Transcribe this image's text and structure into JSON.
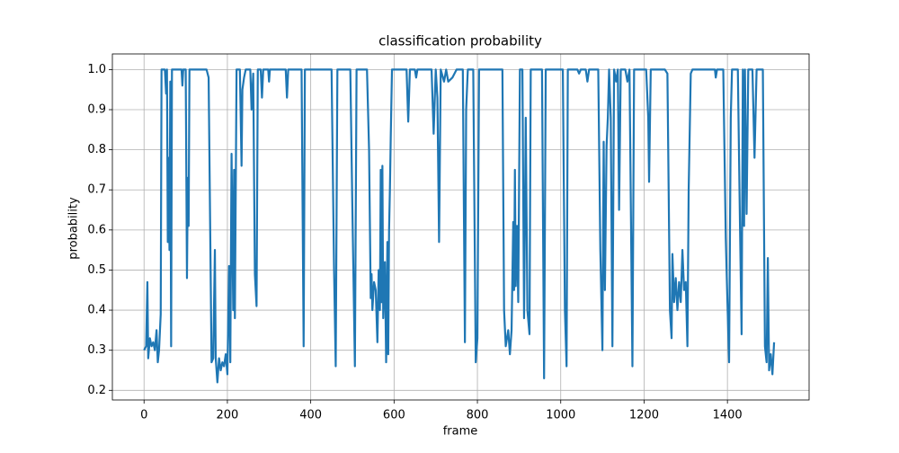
{
  "chart_data": {
    "type": "line",
    "title": "classification probability",
    "xlabel": "frame",
    "ylabel": "probability",
    "x": [
      0,
      5,
      8,
      10,
      14,
      18,
      22,
      26,
      30,
      33,
      36,
      40,
      42,
      50,
      53,
      55,
      57,
      59,
      61,
      63,
      65,
      67,
      90,
      92,
      94,
      100,
      103,
      105,
      107,
      109,
      150,
      155,
      162,
      166,
      170,
      172,
      176,
      180,
      184,
      188,
      192,
      196,
      200,
      204,
      207,
      210,
      214,
      216,
      218,
      222,
      230,
      234,
      236,
      240,
      244,
      255,
      258,
      262,
      266,
      270,
      273,
      280,
      283,
      286,
      298,
      300,
      302,
      340,
      343,
      346,
      378,
      383,
      386,
      450,
      456,
      460,
      464,
      495,
      500,
      506,
      510,
      535,
      540,
      544,
      546,
      548,
      552,
      556,
      560,
      563,
      566,
      568,
      570,
      572,
      574,
      578,
      581,
      584,
      586,
      588,
      590,
      592,
      595,
      630,
      634,
      638,
      650,
      653,
      656,
      690,
      695,
      700,
      704,
      708,
      712,
      720,
      725,
      730,
      740,
      750,
      765,
      770,
      773,
      777,
      790,
      796,
      800,
      804,
      860,
      864,
      868,
      874,
      878,
      882,
      886,
      888,
      890,
      892,
      895,
      898,
      902,
      908,
      912,
      916,
      920,
      925,
      928,
      955,
      960,
      964,
      1005,
      1010,
      1014,
      1017,
      1040,
      1044,
      1048,
      1060,
      1064,
      1068,
      1090,
      1095,
      1100,
      1103,
      1106,
      1110,
      1113,
      1116,
      1120,
      1124,
      1128,
      1133,
      1137,
      1140,
      1144,
      1155,
      1160,
      1165,
      1172,
      1176,
      1205,
      1210,
      1212,
      1216,
      1250,
      1256,
      1262,
      1266,
      1268,
      1272,
      1276,
      1280,
      1284,
      1288,
      1292,
      1296,
      1300,
      1304,
      1307,
      1312,
      1316,
      1370,
      1372,
      1375,
      1390,
      1396,
      1400,
      1404,
      1408,
      1411,
      1425,
      1430,
      1434,
      1437,
      1440,
      1442,
      1446,
      1450,
      1460,
      1465,
      1470,
      1485,
      1490,
      1494,
      1497,
      1500,
      1504,
      1508,
      1512
    ],
    "series": [
      {
        "name": "probability",
        "color": "#1f77b4",
        "values": [
          0.3,
          0.31,
          0.47,
          0.28,
          0.33,
          0.31,
          0.32,
          0.3,
          0.35,
          0.27,
          0.3,
          0.39,
          1.0,
          1.0,
          0.94,
          1.0,
          0.57,
          0.78,
          0.55,
          0.97,
          0.31,
          1.0,
          1.0,
          0.96,
          1.0,
          1.0,
          0.48,
          0.73,
          0.61,
          1.0,
          1.0,
          0.98,
          0.27,
          0.28,
          0.55,
          0.28,
          0.22,
          0.28,
          0.25,
          0.27,
          0.26,
          0.29,
          0.24,
          0.51,
          0.27,
          0.79,
          0.4,
          0.75,
          0.38,
          1.0,
          1.0,
          0.76,
          0.95,
          0.98,
          1.0,
          1.0,
          0.9,
          0.99,
          0.49,
          0.41,
          1.0,
          1.0,
          0.93,
          1.0,
          1.0,
          0.97,
          1.0,
          1.0,
          0.93,
          1.0,
          1.0,
          0.31,
          1.0,
          1.0,
          0.5,
          0.26,
          1.0,
          1.0,
          0.65,
          0.26,
          1.0,
          1.0,
          0.8,
          0.43,
          0.49,
          0.4,
          0.47,
          0.45,
          0.32,
          0.5,
          0.4,
          0.75,
          0.42,
          0.76,
          0.38,
          0.52,
          0.27,
          0.57,
          0.29,
          0.6,
          0.7,
          0.83,
          1.0,
          1.0,
          0.87,
          1.0,
          1.0,
          0.98,
          1.0,
          1.0,
          0.84,
          1.0,
          0.93,
          0.57,
          1.0,
          0.97,
          1.0,
          0.97,
          0.98,
          1.0,
          1.0,
          0.32,
          0.9,
          1.0,
          1.0,
          0.27,
          0.33,
          1.0,
          1.0,
          0.4,
          0.31,
          0.35,
          0.29,
          0.35,
          0.62,
          0.45,
          0.75,
          0.46,
          0.61,
          0.42,
          1.0,
          1.0,
          0.38,
          0.88,
          0.4,
          0.34,
          1.0,
          1.0,
          0.23,
          1.0,
          1.0,
          0.4,
          0.26,
          1.0,
          1.0,
          0.99,
          1.0,
          1.0,
          0.97,
          1.0,
          1.0,
          0.55,
          0.3,
          0.82,
          0.45,
          0.81,
          0.88,
          1.0,
          0.88,
          0.31,
          1.0,
          0.97,
          1.0,
          0.65,
          1.0,
          1.0,
          0.97,
          1.0,
          0.26,
          1.0,
          1.0,
          0.88,
          0.72,
          1.0,
          1.0,
          0.99,
          0.4,
          0.33,
          0.54,
          0.42,
          0.48,
          0.4,
          0.47,
          0.42,
          0.55,
          0.45,
          0.47,
          0.31,
          0.7,
          0.99,
          1.0,
          1.0,
          0.98,
          1.0,
          1.0,
          0.58,
          0.42,
          0.27,
          0.88,
          1.0,
          1.0,
          0.62,
          0.34,
          1.0,
          0.61,
          1.0,
          0.64,
          1.0,
          1.0,
          0.78,
          1.0,
          1.0,
          0.31,
          0.27,
          0.53,
          0.25,
          0.29,
          0.24,
          0.32
        ]
      }
    ],
    "xlim": [
      -76,
      1596
    ],
    "ylim": [
      0.176,
      1.039
    ],
    "xticks": [
      0,
      200,
      400,
      600,
      800,
      1000,
      1200,
      1400
    ],
    "yticks": [
      0.2,
      0.3,
      0.4,
      0.5,
      0.6,
      0.7,
      0.8,
      0.9,
      {
        "value": 1.0,
        "label": "1.0"
      }
    ],
    "grid": true
  }
}
